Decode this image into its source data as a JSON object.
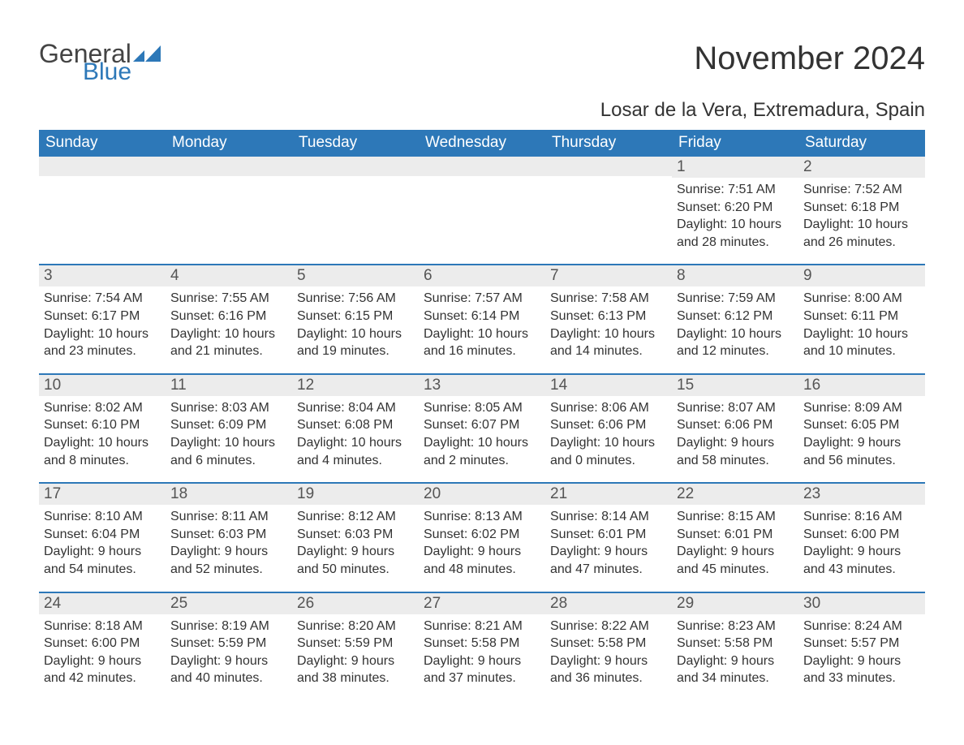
{
  "brand": {
    "word1": "General",
    "word2": "Blue",
    "accent_color": "#2d78b8"
  },
  "title": "November 2024",
  "location": "Losar de la Vera, Extremadura, Spain",
  "header_bg": "#2d78b8",
  "header_fg": "#ffffff",
  "row_divider_color": "#2d78b8",
  "daynum_bg": "#ececec",
  "text_color": "#333333",
  "day_names": [
    "Sunday",
    "Monday",
    "Tuesday",
    "Wednesday",
    "Thursday",
    "Friday",
    "Saturday"
  ],
  "weeks": [
    [
      {
        "blank": true
      },
      {
        "blank": true
      },
      {
        "blank": true
      },
      {
        "blank": true
      },
      {
        "blank": true
      },
      {
        "day": "1",
        "sunrise": "Sunrise: 7:51 AM",
        "sunset": "Sunset: 6:20 PM",
        "daylight1": "Daylight: 10 hours",
        "daylight2": "and 28 minutes."
      },
      {
        "day": "2",
        "sunrise": "Sunrise: 7:52 AM",
        "sunset": "Sunset: 6:18 PM",
        "daylight1": "Daylight: 10 hours",
        "daylight2": "and 26 minutes."
      }
    ],
    [
      {
        "day": "3",
        "sunrise": "Sunrise: 7:54 AM",
        "sunset": "Sunset: 6:17 PM",
        "daylight1": "Daylight: 10 hours",
        "daylight2": "and 23 minutes."
      },
      {
        "day": "4",
        "sunrise": "Sunrise: 7:55 AM",
        "sunset": "Sunset: 6:16 PM",
        "daylight1": "Daylight: 10 hours",
        "daylight2": "and 21 minutes."
      },
      {
        "day": "5",
        "sunrise": "Sunrise: 7:56 AM",
        "sunset": "Sunset: 6:15 PM",
        "daylight1": "Daylight: 10 hours",
        "daylight2": "and 19 minutes."
      },
      {
        "day": "6",
        "sunrise": "Sunrise: 7:57 AM",
        "sunset": "Sunset: 6:14 PM",
        "daylight1": "Daylight: 10 hours",
        "daylight2": "and 16 minutes."
      },
      {
        "day": "7",
        "sunrise": "Sunrise: 7:58 AM",
        "sunset": "Sunset: 6:13 PM",
        "daylight1": "Daylight: 10 hours",
        "daylight2": "and 14 minutes."
      },
      {
        "day": "8",
        "sunrise": "Sunrise: 7:59 AM",
        "sunset": "Sunset: 6:12 PM",
        "daylight1": "Daylight: 10 hours",
        "daylight2": "and 12 minutes."
      },
      {
        "day": "9",
        "sunrise": "Sunrise: 8:00 AM",
        "sunset": "Sunset: 6:11 PM",
        "daylight1": "Daylight: 10 hours",
        "daylight2": "and 10 minutes."
      }
    ],
    [
      {
        "day": "10",
        "sunrise": "Sunrise: 8:02 AM",
        "sunset": "Sunset: 6:10 PM",
        "daylight1": "Daylight: 10 hours",
        "daylight2": "and 8 minutes."
      },
      {
        "day": "11",
        "sunrise": "Sunrise: 8:03 AM",
        "sunset": "Sunset: 6:09 PM",
        "daylight1": "Daylight: 10 hours",
        "daylight2": "and 6 minutes."
      },
      {
        "day": "12",
        "sunrise": "Sunrise: 8:04 AM",
        "sunset": "Sunset: 6:08 PM",
        "daylight1": "Daylight: 10 hours",
        "daylight2": "and 4 minutes."
      },
      {
        "day": "13",
        "sunrise": "Sunrise: 8:05 AM",
        "sunset": "Sunset: 6:07 PM",
        "daylight1": "Daylight: 10 hours",
        "daylight2": "and 2 minutes."
      },
      {
        "day": "14",
        "sunrise": "Sunrise: 8:06 AM",
        "sunset": "Sunset: 6:06 PM",
        "daylight1": "Daylight: 10 hours",
        "daylight2": "and 0 minutes."
      },
      {
        "day": "15",
        "sunrise": "Sunrise: 8:07 AM",
        "sunset": "Sunset: 6:06 PM",
        "daylight1": "Daylight: 9 hours",
        "daylight2": "and 58 minutes."
      },
      {
        "day": "16",
        "sunrise": "Sunrise: 8:09 AM",
        "sunset": "Sunset: 6:05 PM",
        "daylight1": "Daylight: 9 hours",
        "daylight2": "and 56 minutes."
      }
    ],
    [
      {
        "day": "17",
        "sunrise": "Sunrise: 8:10 AM",
        "sunset": "Sunset: 6:04 PM",
        "daylight1": "Daylight: 9 hours",
        "daylight2": "and 54 minutes."
      },
      {
        "day": "18",
        "sunrise": "Sunrise: 8:11 AM",
        "sunset": "Sunset: 6:03 PM",
        "daylight1": "Daylight: 9 hours",
        "daylight2": "and 52 minutes."
      },
      {
        "day": "19",
        "sunrise": "Sunrise: 8:12 AM",
        "sunset": "Sunset: 6:03 PM",
        "daylight1": "Daylight: 9 hours",
        "daylight2": "and 50 minutes."
      },
      {
        "day": "20",
        "sunrise": "Sunrise: 8:13 AM",
        "sunset": "Sunset: 6:02 PM",
        "daylight1": "Daylight: 9 hours",
        "daylight2": "and 48 minutes."
      },
      {
        "day": "21",
        "sunrise": "Sunrise: 8:14 AM",
        "sunset": "Sunset: 6:01 PM",
        "daylight1": "Daylight: 9 hours",
        "daylight2": "and 47 minutes."
      },
      {
        "day": "22",
        "sunrise": "Sunrise: 8:15 AM",
        "sunset": "Sunset: 6:01 PM",
        "daylight1": "Daylight: 9 hours",
        "daylight2": "and 45 minutes."
      },
      {
        "day": "23",
        "sunrise": "Sunrise: 8:16 AM",
        "sunset": "Sunset: 6:00 PM",
        "daylight1": "Daylight: 9 hours",
        "daylight2": "and 43 minutes."
      }
    ],
    [
      {
        "day": "24",
        "sunrise": "Sunrise: 8:18 AM",
        "sunset": "Sunset: 6:00 PM",
        "daylight1": "Daylight: 9 hours",
        "daylight2": "and 42 minutes."
      },
      {
        "day": "25",
        "sunrise": "Sunrise: 8:19 AM",
        "sunset": "Sunset: 5:59 PM",
        "daylight1": "Daylight: 9 hours",
        "daylight2": "and 40 minutes."
      },
      {
        "day": "26",
        "sunrise": "Sunrise: 8:20 AM",
        "sunset": "Sunset: 5:59 PM",
        "daylight1": "Daylight: 9 hours",
        "daylight2": "and 38 minutes."
      },
      {
        "day": "27",
        "sunrise": "Sunrise: 8:21 AM",
        "sunset": "Sunset: 5:58 PM",
        "daylight1": "Daylight: 9 hours",
        "daylight2": "and 37 minutes."
      },
      {
        "day": "28",
        "sunrise": "Sunrise: 8:22 AM",
        "sunset": "Sunset: 5:58 PM",
        "daylight1": "Daylight: 9 hours",
        "daylight2": "and 36 minutes."
      },
      {
        "day": "29",
        "sunrise": "Sunrise: 8:23 AM",
        "sunset": "Sunset: 5:58 PM",
        "daylight1": "Daylight: 9 hours",
        "daylight2": "and 34 minutes."
      },
      {
        "day": "30",
        "sunrise": "Sunrise: 8:24 AM",
        "sunset": "Sunset: 5:57 PM",
        "daylight1": "Daylight: 9 hours",
        "daylight2": "and 33 minutes."
      }
    ]
  ]
}
